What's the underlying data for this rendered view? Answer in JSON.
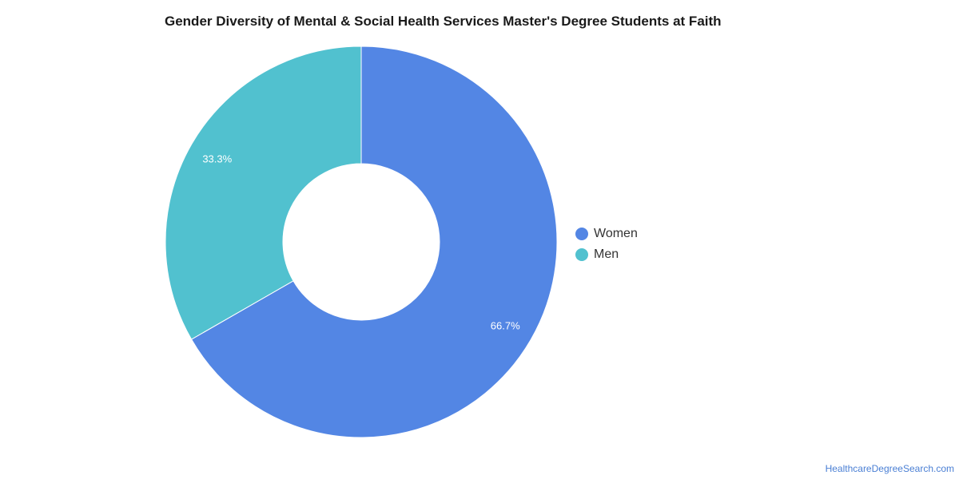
{
  "chart_data": {
    "type": "pie",
    "title": "Gender Diversity of Mental & Social Health Services Master's Degree Students at Faith",
    "categories": [
      "Women",
      "Men"
    ],
    "values": [
      66.7,
      33.3
    ],
    "data_labels": [
      "66.7%",
      "33.3%"
    ],
    "colors": [
      "#5386e4",
      "#51c1cf"
    ],
    "donut": true,
    "legend_position": "right"
  },
  "watermark": "HealthcareDegreeSearch.com"
}
